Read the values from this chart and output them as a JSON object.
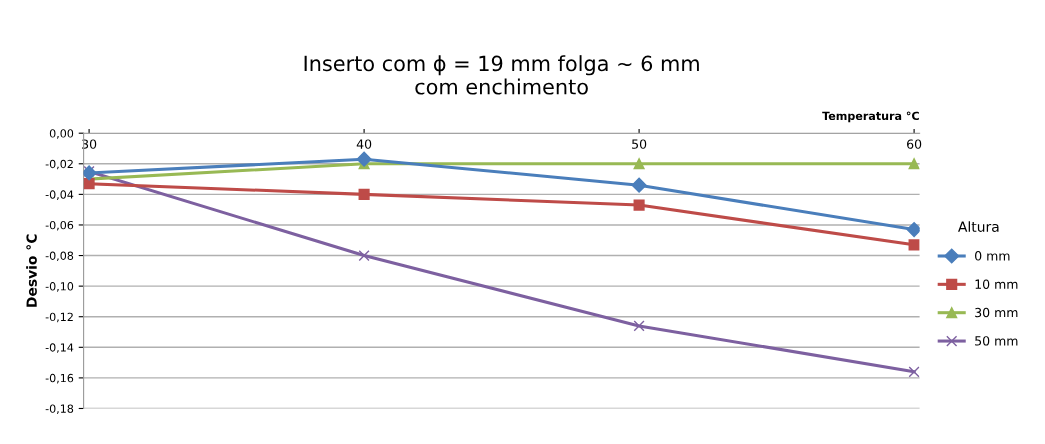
{
  "chart_data": {
    "type": "line",
    "title": "Inserto com ϕ = 19 mm folga ~ 6 mm\ncom enchimento",
    "xlabel": "Temperatura °C",
    "ylabel": "Desvio °C",
    "legend_title": "Altura",
    "categories": [
      "30",
      "40",
      "50",
      "60"
    ],
    "series": [
      {
        "name": "0 mm",
        "color": "#4a7ebb",
        "marker": "diamond",
        "values": [
          -0.026,
          -0.017,
          -0.034,
          -0.063
        ]
      },
      {
        "name": "10 mm",
        "color": "#be4b48",
        "marker": "square",
        "values": [
          -0.033,
          -0.04,
          -0.047,
          -0.073
        ]
      },
      {
        "name": "30 mm",
        "color": "#98b954",
        "marker": "triangle",
        "values": [
          -0.03,
          -0.02,
          -0.02,
          -0.02
        ]
      },
      {
        "name": "50 mm",
        "color": "#7d60a0",
        "marker": "cross",
        "values": [
          -0.025,
          -0.08,
          -0.126,
          -0.156
        ]
      }
    ],
    "ylim": [
      -0.18,
      0.0
    ],
    "yticks": [
      {
        "value": 0.0,
        "label": "0,00"
      },
      {
        "value": -0.02,
        "label": "-0,02"
      },
      {
        "value": -0.04,
        "label": "-0,04"
      },
      {
        "value": -0.06,
        "label": "-0,06"
      },
      {
        "value": -0.08,
        "label": "-0,08"
      },
      {
        "value": -0.1,
        "label": "-0,10"
      },
      {
        "value": -0.12,
        "label": "-0,12"
      },
      {
        "value": -0.14,
        "label": "-0,14"
      },
      {
        "value": -0.16,
        "label": "-0,16"
      },
      {
        "value": -0.18,
        "label": "-0,18"
      }
    ],
    "grid": "y",
    "legend": "right",
    "line_style": "solid"
  }
}
